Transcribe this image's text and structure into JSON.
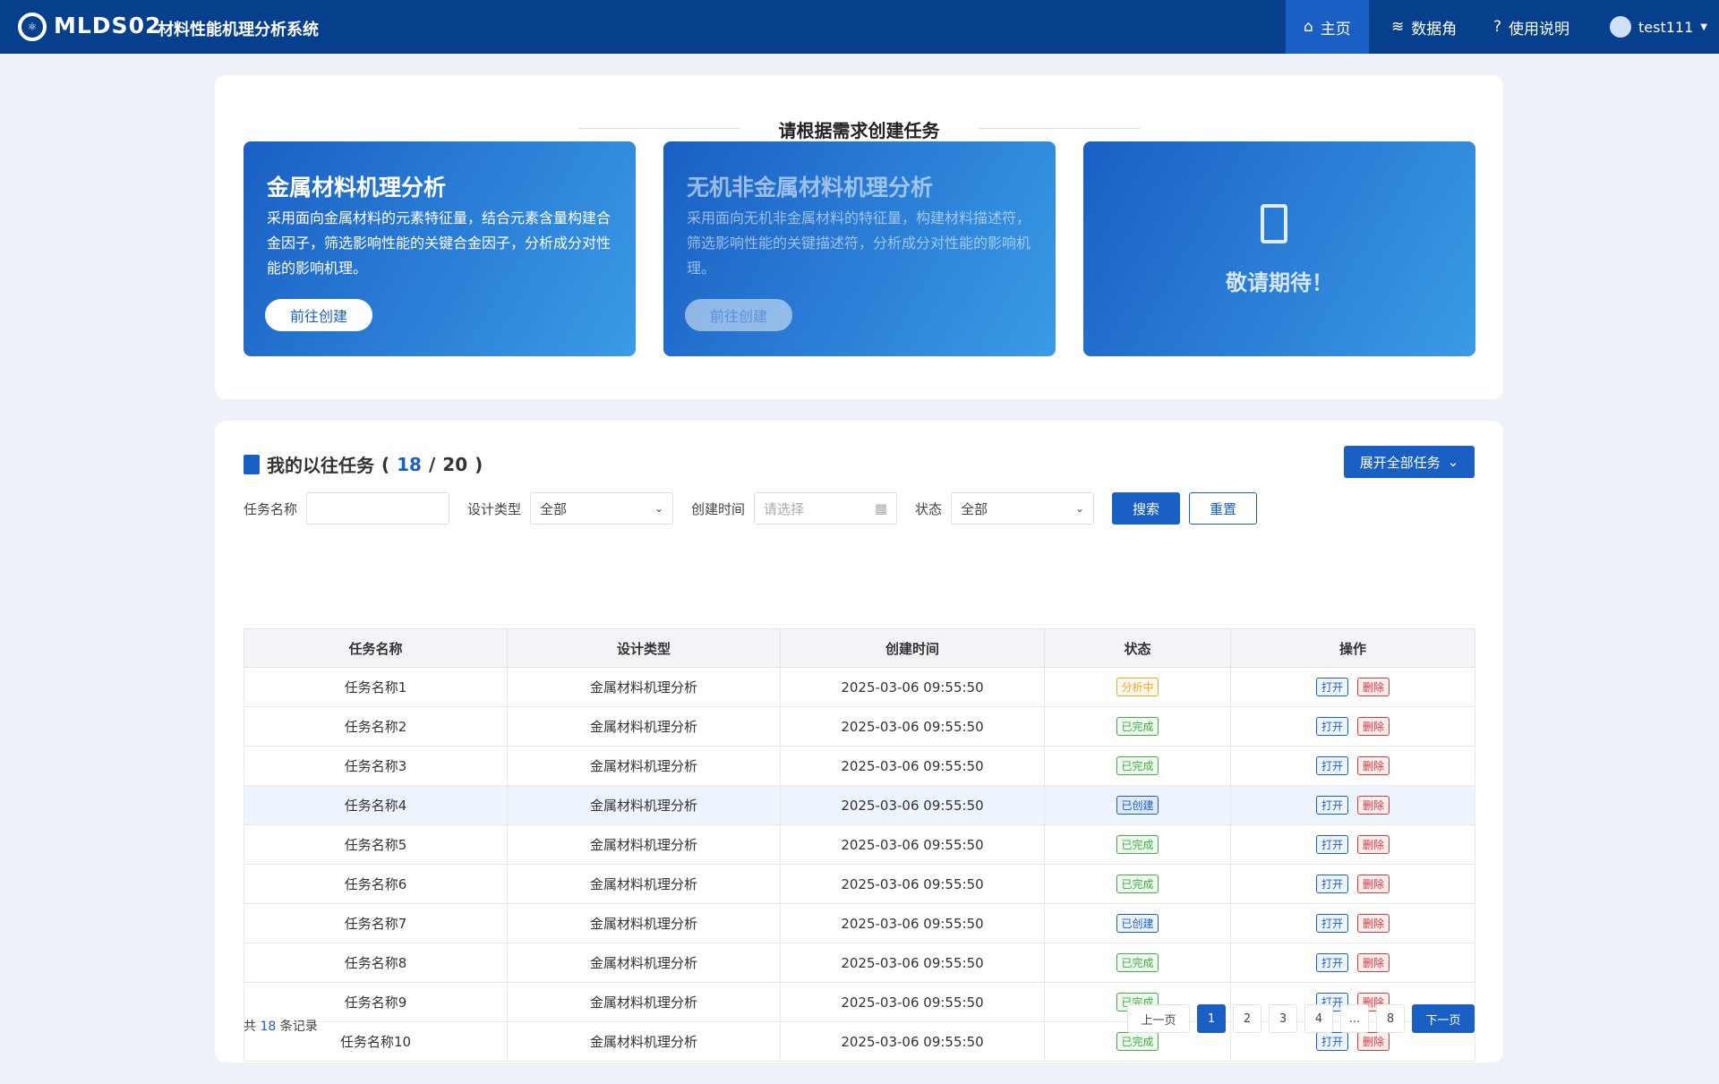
{
  "header": {
    "brand": "MLDS02",
    "subtitle": "材料性能机理分析系统",
    "nav": [
      {
        "label": "主页",
        "icon": "home-icon",
        "active": true
      },
      {
        "label": "数据角",
        "icon": "layers-icon"
      },
      {
        "label": "使用说明",
        "icon": "help-icon"
      }
    ],
    "user": "test111"
  },
  "create": {
    "title": "请根据需求创建任务",
    "cards": [
      {
        "title": "金属材料机理分析",
        "desc": "采用面向金属材料的元素特征量，结合元素含量构建合金因子，筛选影响性能的关键合金因子，分析成分对性能的影响机理。",
        "button": "前往创建"
      },
      {
        "title": "无机非金属材料机理分析",
        "desc": "采用面向无机非金属材料的特征量，构建材料描述符，筛选影响性能的关键描述符，分析成分对性能的影响机理。",
        "button": "前往创建"
      }
    ],
    "coming_soon": "敬请期待！"
  },
  "tasks": {
    "title": "我的以往任务",
    "count": "18",
    "limit": "20",
    "expand_label": "展开全部任务",
    "filters": {
      "name_label": "任务名称",
      "type_label": "设计类型",
      "type_value": "全部",
      "time_label": "创建时间",
      "time_placeholder": "请选择",
      "status_label": "状态",
      "status_value": "全部",
      "search": "搜索",
      "reset": "重置"
    },
    "columns": [
      "任务名称",
      "设计类型",
      "创建时间",
      "状态",
      "操作"
    ],
    "open_label": "打开",
    "delete_label": "删除",
    "rows": [
      [
        "任务名称1",
        "金属材料机理分析",
        "2025-03-06 09:55:50",
        "分析中"
      ],
      [
        "任务名称2",
        "金属材料机理分析",
        "2025-03-06 09:55:50",
        "已完成"
      ],
      [
        "任务名称3",
        "金属材料机理分析",
        "2025-03-06 09:55:50",
        "已完成"
      ],
      [
        "任务名称4",
        "金属材料机理分析",
        "2025-03-06 09:55:50",
        "已创建"
      ],
      [
        "任务名称5",
        "金属材料机理分析",
        "2025-03-06 09:55:50",
        "已完成"
      ],
      [
        "任务名称6",
        "金属材料机理分析",
        "2025-03-06 09:55:50",
        "已完成"
      ],
      [
        "任务名称7",
        "金属材料机理分析",
        "2025-03-06 09:55:50",
        "已创建"
      ],
      [
        "任务名称8",
        "金属材料机理分析",
        "2025-03-06 09:55:50",
        "已完成"
      ],
      [
        "任务名称9",
        "金属材料机理分析",
        "2025-03-06 09:55:50",
        "已完成"
      ],
      [
        "任务名称10",
        "金属材料机理分析",
        "2025-03-06 09:55:50",
        "已完成"
      ]
    ],
    "status_colors": {
      "分析中": "#f5a623",
      "已完成": "#3cb043",
      "已创建": "#1a60c4"
    },
    "total_prefix": "共",
    "total": "18",
    "total_suffix": "条记录",
    "pager": {
      "prev": "上一页",
      "pages": [
        "1",
        "2",
        "3",
        "4",
        "...",
        "8"
      ],
      "current": "1",
      "next": "下一页"
    }
  }
}
